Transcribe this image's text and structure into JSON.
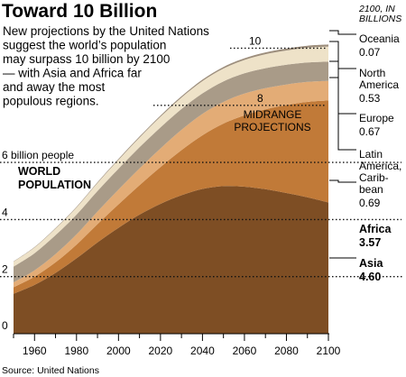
{
  "chart_data": {
    "type": "area",
    "title": "Toward 10 Billion",
    "description_lines": [
      "New projections by the United Nations",
      "suggest the world’s population",
      "may surpass 10 billion by 2100",
      "— with Asia and Africa far",
      "and away the most",
      "populous regions."
    ],
    "units_label": [
      "2100, IN",
      "BILLIONS"
    ],
    "ylabel": [
      "WORLD",
      "POPULATION"
    ],
    "projection_label": [
      "MIDRANGE",
      "PROJECTIONS"
    ],
    "x": [
      1950,
      1960,
      1970,
      1980,
      1990,
      2000,
      2010,
      2020,
      2030,
      2040,
      2050,
      2060,
      2070,
      2080,
      2090,
      2100
    ],
    "x_ticks": [
      1960,
      1980,
      2000,
      2020,
      2040,
      2060,
      2080,
      2100
    ],
    "y_ticks": [
      {
        "value": 0,
        "label": "0"
      },
      {
        "value": 2,
        "label": "2"
      },
      {
        "value": 4,
        "label": "4"
      },
      {
        "value": 6,
        "label": "6 billion people"
      },
      {
        "value": 8,
        "label": "8"
      },
      {
        "value": 10,
        "label": "10"
      }
    ],
    "ylim": [
      0,
      10.9
    ],
    "series": [
      {
        "name": "Asia",
        "value_label": "4.60",
        "color": "#7e4e24",
        "values": [
          1.4,
          1.71,
          2.13,
          2.64,
          3.2,
          3.71,
          4.17,
          4.55,
          4.85,
          5.07,
          5.17,
          5.15,
          5.06,
          4.93,
          4.78,
          4.6
        ]
      },
      {
        "name": "Africa",
        "value_label": "3.57",
        "color": "#c17a38",
        "values": [
          0.23,
          0.29,
          0.37,
          0.48,
          0.64,
          0.82,
          1.03,
          1.29,
          1.58,
          1.88,
          2.19,
          2.5,
          2.8,
          3.08,
          3.34,
          3.57
        ]
      },
      {
        "name": "Latin America, Carib-bean",
        "value_label": "0.69",
        "color": "#e3ac76",
        "values": [
          0.17,
          0.22,
          0.29,
          0.36,
          0.44,
          0.52,
          0.59,
          0.65,
          0.71,
          0.75,
          0.76,
          0.76,
          0.74,
          0.72,
          0.7,
          0.69
        ]
      },
      {
        "name": "Europe",
        "value_label": "0.67",
        "color": "#a99b88",
        "values": [
          0.55,
          0.6,
          0.66,
          0.69,
          0.72,
          0.73,
          0.74,
          0.74,
          0.73,
          0.72,
          0.72,
          0.71,
          0.7,
          0.69,
          0.68,
          0.67
        ]
      },
      {
        "name": "North America",
        "value_label": "0.53",
        "color": "#eee2c8",
        "values": [
          0.17,
          0.2,
          0.23,
          0.25,
          0.28,
          0.31,
          0.34,
          0.37,
          0.4,
          0.43,
          0.45,
          0.47,
          0.49,
          0.5,
          0.52,
          0.53
        ]
      },
      {
        "name": "Oceania",
        "value_label": "0.07",
        "color": "#9d8e7c",
        "values": [
          0.013,
          0.016,
          0.02,
          0.023,
          0.027,
          0.031,
          0.036,
          0.042,
          0.047,
          0.052,
          0.056,
          0.06,
          0.064,
          0.067,
          0.069,
          0.07
        ]
      }
    ],
    "source": "Source: United Nations"
  }
}
